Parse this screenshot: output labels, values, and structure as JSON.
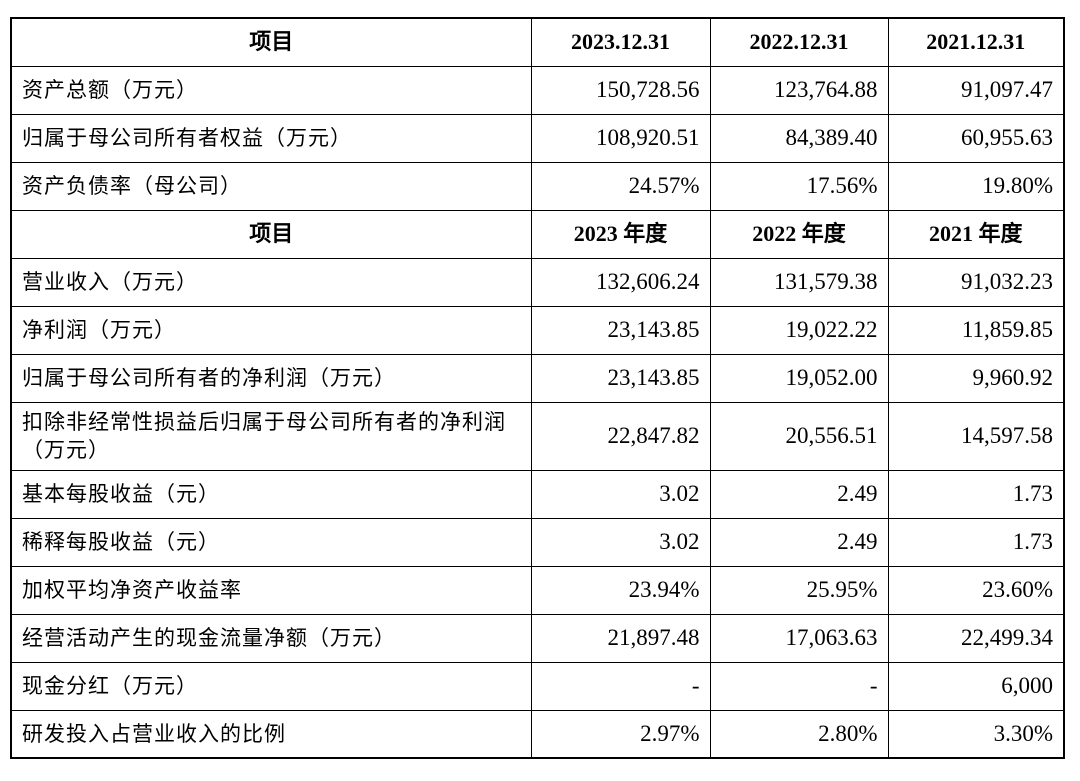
{
  "balance_header": {
    "item": "项目",
    "col1": "2023.12.31",
    "col2": "2022.12.31",
    "col3": "2021.12.31"
  },
  "balance_rows": [
    {
      "label": "资产总额（万元）",
      "v1": "150,728.56",
      "v2": "123,764.88",
      "v3": "91,097.47"
    },
    {
      "label": "归属于母公司所有者权益（万元）",
      "v1": "108,920.51",
      "v2": "84,389.40",
      "v3": "60,955.63"
    },
    {
      "label": "资产负债率（母公司）",
      "v1": "24.57%",
      "v2": "17.56%",
      "v3": "19.80%"
    }
  ],
  "income_header": {
    "item": "项目",
    "col1": "2023 年度",
    "col2": "2022 年度",
    "col3": "2021 年度"
  },
  "income_rows": [
    {
      "label": "营业收入（万元）",
      "v1": "132,606.24",
      "v2": "131,579.38",
      "v3": "91,032.23"
    },
    {
      "label": "净利润（万元）",
      "v1": "23,143.85",
      "v2": "19,022.22",
      "v3": "11,859.85"
    },
    {
      "label": "归属于母公司所有者的净利润（万元）",
      "v1": "23,143.85",
      "v2": "19,052.00",
      "v3": "9,960.92"
    },
    {
      "label": "扣除非经常性损益后归属于母公司所有者的净利润（万元）",
      "v1": "22,847.82",
      "v2": "20,556.51",
      "v3": "14,597.58"
    },
    {
      "label": "基本每股收益（元）",
      "v1": "3.02",
      "v2": "2.49",
      "v3": "1.73"
    },
    {
      "label": "稀释每股收益（元）",
      "v1": "3.02",
      "v2": "2.49",
      "v3": "1.73"
    },
    {
      "label": "加权平均净资产收益率",
      "v1": "23.94%",
      "v2": "25.95%",
      "v3": "23.60%"
    },
    {
      "label": "经营活动产生的现金流量净额（万元）",
      "v1": "21,897.48",
      "v2": "17,063.63",
      "v3": "22,499.34"
    },
    {
      "label": "现金分红（万元）",
      "v1": "-",
      "v2": "-",
      "v3": "6,000"
    },
    {
      "label": "研发投入占营业收入的比例",
      "v1": "2.97%",
      "v2": "2.80%",
      "v3": "3.30%"
    }
  ]
}
